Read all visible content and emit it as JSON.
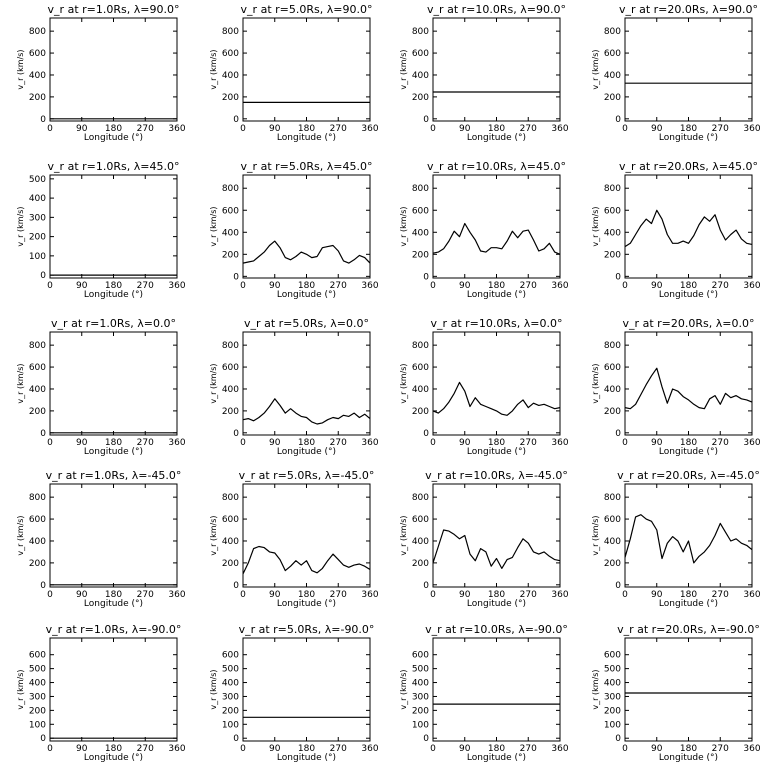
{
  "chart_data": [
    {
      "type": "line",
      "title": "v_r at r=1.0Rs, λ=90.0°",
      "xlabel": "Longitude (°)",
      "ylabel": "v_r (km/s)",
      "xlim": [
        0,
        360
      ],
      "ylim": [
        -20,
        920
      ],
      "xticks": [
        0,
        90,
        180,
        270,
        360
      ],
      "yticks": [
        0,
        200,
        400,
        600,
        800
      ],
      "x": [
        0,
        360
      ],
      "values": [
        0,
        0
      ]
    },
    {
      "type": "line",
      "title": "v_r at r=5.0Rs, λ=90.0°",
      "xlabel": "Longitude (°)",
      "ylabel": "v_r (km/s)",
      "xlim": [
        0,
        360
      ],
      "ylim": [
        -20,
        920
      ],
      "xticks": [
        0,
        90,
        180,
        270,
        360
      ],
      "yticks": [
        0,
        200,
        400,
        600,
        800
      ],
      "x": [
        0,
        360
      ],
      "values": [
        150,
        150
      ]
    },
    {
      "type": "line",
      "title": "v_r at r=10.0Rs, λ=90.0°",
      "xlabel": "Longitude (°)",
      "ylabel": "v_r (km/s)",
      "xlim": [
        0,
        360
      ],
      "ylim": [
        -20,
        920
      ],
      "xticks": [
        0,
        90,
        180,
        270,
        360
      ],
      "yticks": [
        0,
        200,
        400,
        600,
        800
      ],
      "x": [
        0,
        360
      ],
      "values": [
        245,
        245
      ]
    },
    {
      "type": "line",
      "title": "v_r at r=20.0Rs, λ=90.0°",
      "xlabel": "Longitude (°)",
      "ylabel": "v_r (km/s)",
      "xlim": [
        0,
        360
      ],
      "ylim": [
        -20,
        920
      ],
      "xticks": [
        0,
        90,
        180,
        270,
        360
      ],
      "yticks": [
        0,
        200,
        400,
        600,
        800
      ],
      "x": [
        0,
        360
      ],
      "values": [
        325,
        325
      ]
    },
    {
      "type": "line",
      "title": "v_r at r=1.0Rs, λ=45.0°",
      "xlabel": "Longitude (°)",
      "ylabel": "v_r (km/s)",
      "xlim": [
        0,
        360
      ],
      "ylim": [
        -15,
        520
      ],
      "xticks": [
        0,
        90,
        180,
        270,
        360
      ],
      "yticks": [
        0,
        100,
        200,
        300,
        400,
        500
      ],
      "x": [
        0,
        360
      ],
      "values": [
        0,
        0
      ]
    },
    {
      "type": "line",
      "title": "v_r at r=5.0Rs, λ=45.0°",
      "xlabel": "Longitude (°)",
      "ylabel": "v_r (km/s)",
      "xlim": [
        0,
        360
      ],
      "ylim": [
        -15,
        920
      ],
      "xticks": [
        0,
        90,
        180,
        270,
        360
      ],
      "yticks": [
        0,
        200,
        400,
        600,
        800
      ],
      "x": [
        0,
        15,
        30,
        45,
        60,
        75,
        90,
        105,
        120,
        135,
        150,
        165,
        180,
        195,
        210,
        225,
        240,
        255,
        270,
        285,
        300,
        315,
        330,
        345,
        360
      ],
      "values": [
        120,
        130,
        140,
        180,
        220,
        280,
        320,
        260,
        170,
        150,
        180,
        220,
        200,
        170,
        180,
        260,
        270,
        280,
        230,
        140,
        120,
        150,
        190,
        170,
        120
      ]
    },
    {
      "type": "line",
      "title": "v_r at r=10.0Rs, λ=45.0°",
      "xlabel": "Longitude (°)",
      "ylabel": "v_r (km/s)",
      "xlim": [
        0,
        360
      ],
      "ylim": [
        -15,
        920
      ],
      "xticks": [
        0,
        90,
        180,
        270,
        360
      ],
      "yticks": [
        0,
        200,
        400,
        600,
        800
      ],
      "x": [
        0,
        15,
        30,
        45,
        60,
        75,
        90,
        105,
        120,
        135,
        150,
        165,
        180,
        195,
        210,
        225,
        240,
        255,
        270,
        285,
        300,
        315,
        330,
        345,
        360
      ],
      "values": [
        210,
        220,
        250,
        320,
        410,
        360,
        480,
        400,
        330,
        230,
        220,
        260,
        260,
        250,
        320,
        410,
        350,
        410,
        420,
        330,
        230,
        250,
        300,
        220,
        200
      ]
    },
    {
      "type": "line",
      "title": "v_r at r=20.0Rs, λ=45.0°",
      "xlabel": "Longitude (°)",
      "ylabel": "v_r (km/s)",
      "xlim": [
        0,
        360
      ],
      "ylim": [
        -15,
        920
      ],
      "xticks": [
        0,
        90,
        180,
        270,
        360
      ],
      "yticks": [
        0,
        200,
        400,
        600,
        800
      ],
      "x": [
        0,
        15,
        30,
        45,
        60,
        75,
        90,
        105,
        120,
        135,
        150,
        165,
        180,
        195,
        210,
        225,
        240,
        255,
        270,
        285,
        300,
        315,
        330,
        345,
        360
      ],
      "values": [
        270,
        300,
        380,
        460,
        520,
        480,
        600,
        520,
        380,
        300,
        300,
        320,
        300,
        370,
        470,
        540,
        500,
        560,
        420,
        330,
        380,
        420,
        340,
        300,
        290
      ]
    },
    {
      "type": "line",
      "title": "v_r at r=1.0Rs, λ=0.0°",
      "xlabel": "Longitude (°)",
      "ylabel": "v_r (km/s)",
      "xlim": [
        0,
        360
      ],
      "ylim": [
        -20,
        920
      ],
      "xticks": [
        0,
        90,
        180,
        270,
        360
      ],
      "yticks": [
        0,
        200,
        400,
        600,
        800
      ],
      "x": [
        0,
        360
      ],
      "values": [
        0,
        0
      ]
    },
    {
      "type": "line",
      "title": "v_r at r=5.0Rs, λ=0.0°",
      "xlabel": "Longitude (°)",
      "ylabel": "v_r (km/s)",
      "xlim": [
        0,
        360
      ],
      "ylim": [
        -20,
        920
      ],
      "xticks": [
        0,
        90,
        180,
        270,
        360
      ],
      "yticks": [
        0,
        200,
        400,
        600,
        800
      ],
      "x": [
        0,
        15,
        30,
        45,
        60,
        75,
        90,
        105,
        120,
        135,
        150,
        165,
        180,
        195,
        210,
        225,
        240,
        255,
        270,
        285,
        300,
        315,
        330,
        345,
        360
      ],
      "values": [
        120,
        130,
        110,
        140,
        180,
        240,
        310,
        250,
        180,
        220,
        180,
        150,
        140,
        100,
        80,
        90,
        120,
        140,
        130,
        160,
        150,
        180,
        140,
        170,
        130
      ]
    },
    {
      "type": "line",
      "title": "v_r at r=10.0Rs, λ=0.0°",
      "xlabel": "Longitude (°)",
      "ylabel": "v_r (km/s)",
      "xlim": [
        0,
        360
      ],
      "ylim": [
        -20,
        920
      ],
      "xticks": [
        0,
        90,
        180,
        270,
        360
      ],
      "yticks": [
        0,
        200,
        400,
        600,
        800
      ],
      "x": [
        0,
        15,
        30,
        45,
        60,
        75,
        90,
        105,
        120,
        135,
        150,
        165,
        180,
        195,
        210,
        225,
        240,
        255,
        270,
        285,
        300,
        315,
        330,
        345,
        360
      ],
      "values": [
        200,
        180,
        220,
        280,
        360,
        460,
        380,
        240,
        320,
        260,
        240,
        220,
        200,
        170,
        160,
        200,
        260,
        300,
        230,
        270,
        250,
        260,
        240,
        220,
        230
      ]
    },
    {
      "type": "line",
      "title": "v_r at r=20.0Rs, λ=0.0°",
      "xlabel": "Longitude (°)",
      "ylabel": "v_r (km/s)",
      "xlim": [
        0,
        360
      ],
      "ylim": [
        -20,
        920
      ],
      "xticks": [
        0,
        90,
        180,
        270,
        360
      ],
      "yticks": [
        0,
        200,
        400,
        600,
        800
      ],
      "x": [
        0,
        15,
        30,
        45,
        60,
        75,
        90,
        105,
        120,
        135,
        150,
        165,
        180,
        195,
        210,
        225,
        240,
        255,
        270,
        285,
        300,
        315,
        330,
        345,
        360
      ],
      "values": [
        230,
        220,
        260,
        350,
        440,
        520,
        590,
        420,
        270,
        400,
        380,
        330,
        300,
        260,
        230,
        220,
        310,
        340,
        260,
        360,
        320,
        340,
        310,
        300,
        280
      ]
    },
    {
      "type": "line",
      "title": "v_r at r=1.0Rs, λ=-45.0°",
      "xlabel": "Longitude (°)",
      "ylabel": "v_r (km/s)",
      "xlim": [
        0,
        360
      ],
      "ylim": [
        -20,
        920
      ],
      "xticks": [
        0,
        90,
        180,
        270,
        360
      ],
      "yticks": [
        0,
        200,
        400,
        600,
        800
      ],
      "x": [
        0,
        360
      ],
      "values": [
        0,
        0
      ]
    },
    {
      "type": "line",
      "title": "v_r at r=5.0Rs, λ=-45.0°",
      "xlabel": "Longitude (°)",
      "ylabel": "v_r (km/s)",
      "xlim": [
        0,
        360
      ],
      "ylim": [
        -20,
        920
      ],
      "xticks": [
        0,
        90,
        180,
        270,
        360
      ],
      "yticks": [
        0,
        200,
        400,
        600,
        800
      ],
      "x": [
        0,
        15,
        30,
        45,
        60,
        75,
        90,
        105,
        120,
        135,
        150,
        165,
        180,
        195,
        210,
        225,
        240,
        255,
        270,
        285,
        300,
        315,
        330,
        345,
        360
      ],
      "values": [
        100,
        200,
        330,
        350,
        340,
        300,
        290,
        230,
        130,
        170,
        220,
        180,
        220,
        130,
        110,
        150,
        220,
        280,
        230,
        180,
        160,
        180,
        190,
        170,
        140
      ]
    },
    {
      "type": "line",
      "title": "v_r at r=10.0Rs, λ=-45.0°",
      "xlabel": "Longitude (°)",
      "ylabel": "v_r (km/s)",
      "xlim": [
        0,
        360
      ],
      "ylim": [
        -20,
        920
      ],
      "xticks": [
        0,
        90,
        180,
        270,
        360
      ],
      "yticks": [
        0,
        200,
        400,
        600,
        800
      ],
      "x": [
        0,
        15,
        30,
        45,
        60,
        75,
        90,
        105,
        120,
        135,
        150,
        165,
        180,
        195,
        210,
        225,
        240,
        255,
        270,
        285,
        300,
        315,
        330,
        345,
        360
      ],
      "values": [
        200,
        350,
        500,
        490,
        460,
        420,
        450,
        280,
        220,
        330,
        300,
        170,
        240,
        150,
        230,
        250,
        340,
        420,
        380,
        300,
        280,
        300,
        260,
        230,
        220
      ]
    },
    {
      "type": "line",
      "title": "v_r at r=20.0Rs, λ=-45.0°",
      "xlabel": "Longitude (°)",
      "ylabel": "v_r (km/s)",
      "xlim": [
        0,
        360
      ],
      "ylim": [
        -20,
        920
      ],
      "xticks": [
        0,
        90,
        180,
        270,
        360
      ],
      "yticks": [
        0,
        200,
        400,
        600,
        800
      ],
      "x": [
        0,
        15,
        30,
        45,
        60,
        75,
        90,
        105,
        120,
        135,
        150,
        165,
        180,
        195,
        210,
        225,
        240,
        255,
        270,
        285,
        300,
        315,
        330,
        345,
        360
      ],
      "values": [
        250,
        420,
        620,
        640,
        600,
        580,
        500,
        240,
        380,
        440,
        400,
        300,
        400,
        200,
        260,
        300,
        360,
        450,
        560,
        480,
        400,
        420,
        380,
        360,
        320
      ]
    },
    {
      "type": "line",
      "title": "v_r at r=1.0Rs, λ=-90.0°",
      "xlabel": "Longitude (°)",
      "ylabel": "v_r (km/s)",
      "xlim": [
        0,
        360
      ],
      "ylim": [
        -20,
        720
      ],
      "xticks": [
        0,
        90,
        180,
        270,
        360
      ],
      "yticks": [
        0,
        100,
        200,
        300,
        400,
        500,
        600
      ],
      "x": [
        0,
        360
      ],
      "values": [
        0,
        0
      ]
    },
    {
      "type": "line",
      "title": "v_r at r=5.0Rs, λ=-90.0°",
      "xlabel": "Longitude (°)",
      "ylabel": "v_r (km/s)",
      "xlim": [
        0,
        360
      ],
      "ylim": [
        -20,
        720
      ],
      "xticks": [
        0,
        90,
        180,
        270,
        360
      ],
      "yticks": [
        0,
        100,
        200,
        300,
        400,
        500,
        600
      ],
      "x": [
        0,
        360
      ],
      "values": [
        150,
        150
      ]
    },
    {
      "type": "line",
      "title": "v_r at r=10.0Rs, λ=-90.0°",
      "xlabel": "Longitude (°)",
      "ylabel": "v_r (km/s)",
      "xlim": [
        0,
        360
      ],
      "ylim": [
        -20,
        720
      ],
      "xticks": [
        0,
        90,
        180,
        270,
        360
      ],
      "yticks": [
        0,
        100,
        200,
        300,
        400,
        500,
        600
      ],
      "x": [
        0,
        360
      ],
      "values": [
        245,
        245
      ]
    },
    {
      "type": "line",
      "title": "v_r at r=20.0Rs, λ=-90.0°",
      "xlabel": "Longitude (°)",
      "ylabel": "v_r (km/s)",
      "xlim": [
        0,
        360
      ],
      "ylim": [
        -20,
        720
      ],
      "xticks": [
        0,
        90,
        180,
        270,
        360
      ],
      "yticks": [
        0,
        100,
        200,
        300,
        400,
        500,
        600
      ],
      "x": [
        0,
        360
      ],
      "values": [
        325,
        325
      ]
    }
  ]
}
